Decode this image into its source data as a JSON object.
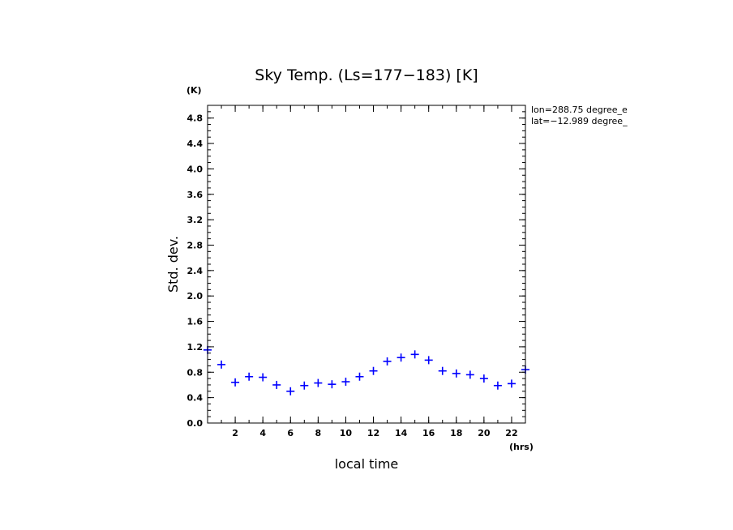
{
  "chart_data": {
    "type": "scatter",
    "title": "Sky Temp. (Ls=177−183) [K]",
    "xlabel": "local time",
    "ylabel": "Std. dev.",
    "x_unit": "(hrs)",
    "y_unit": "(K)",
    "annotations": [
      "lon=288.75 degree_e",
      "lat=−12.989 degree_"
    ],
    "xlim": [
      0,
      23
    ],
    "ylim": [
      0,
      5.0
    ],
    "xticks": [
      2,
      4,
      6,
      8,
      10,
      12,
      14,
      16,
      18,
      20,
      22
    ],
    "yticks": [
      0.0,
      0.4,
      0.8,
      1.2,
      1.6,
      2.0,
      2.4,
      2.8,
      3.2,
      3.6,
      4.0,
      4.4,
      4.8
    ],
    "grid": false,
    "marker": "+",
    "color": "#0000ff",
    "x": [
      0,
      1,
      2,
      3,
      4,
      5,
      6,
      7,
      8,
      9,
      10,
      11,
      12,
      13,
      14,
      15,
      16,
      17,
      18,
      19,
      20,
      21,
      22,
      23
    ],
    "y": [
      1.15,
      0.92,
      0.64,
      0.73,
      0.72,
      0.6,
      0.5,
      0.59,
      0.63,
      0.61,
      0.65,
      0.73,
      0.82,
      0.97,
      1.03,
      1.08,
      0.99,
      0.82,
      0.78,
      0.76,
      0.7,
      0.59,
      0.62,
      0.84
    ]
  }
}
